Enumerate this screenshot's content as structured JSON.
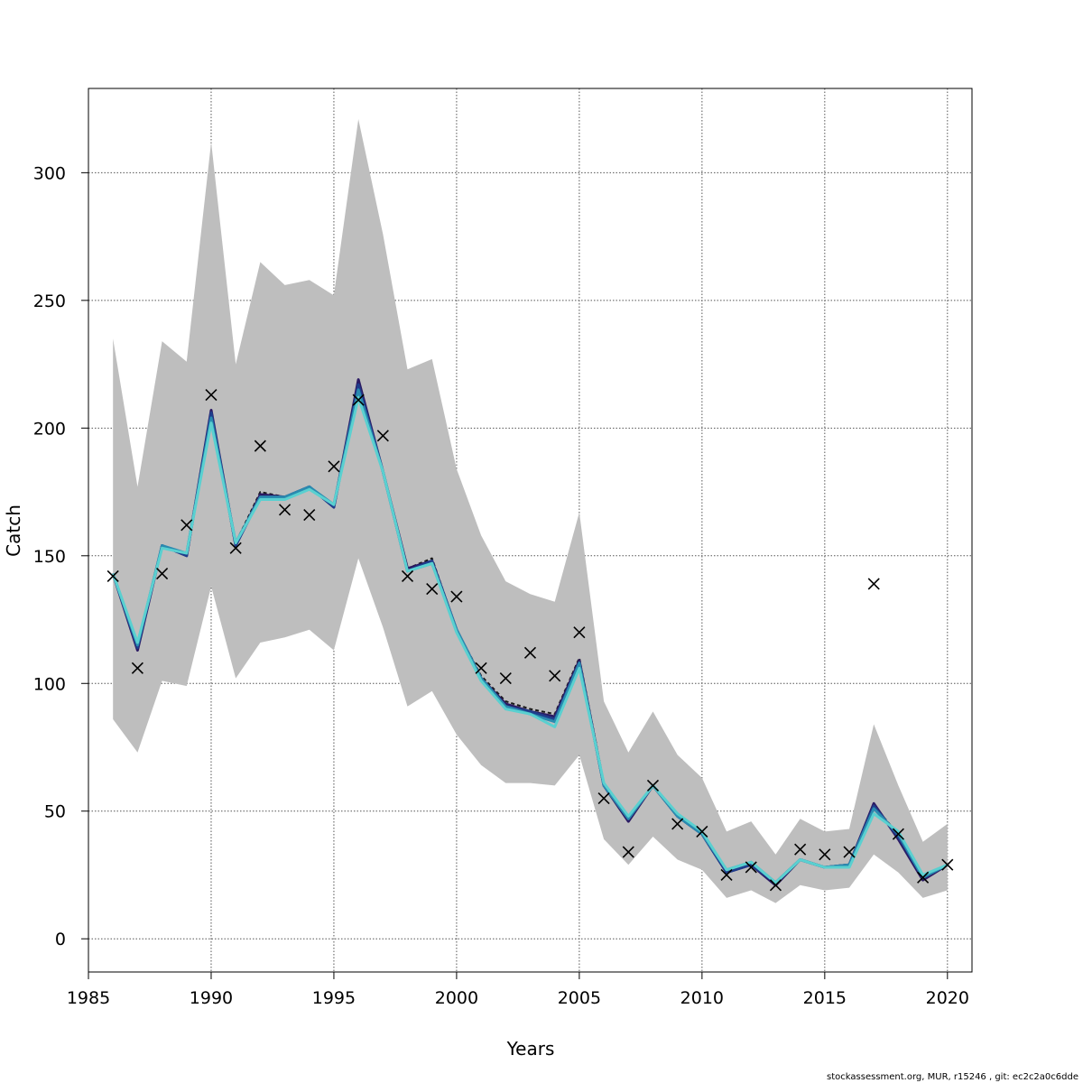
{
  "chart_data": {
    "type": "line",
    "title": "",
    "xlabel": "Years",
    "ylabel": "Catch",
    "xlim": [
      1985,
      2021
    ],
    "ylim": [
      -13,
      333
    ],
    "x_ticks": [
      1985,
      1990,
      1995,
      2000,
      2005,
      2010,
      2015,
      2020
    ],
    "y_ticks": [
      0,
      50,
      100,
      150,
      200,
      250,
      300
    ],
    "grid": true,
    "legend": "none",
    "years": [
      1986,
      1987,
      1988,
      1989,
      1990,
      1991,
      1992,
      1993,
      1994,
      1995,
      1996,
      1997,
      1998,
      1999,
      2000,
      2001,
      2002,
      2003,
      2004,
      2005,
      2006,
      2007,
      2008,
      2009,
      2010,
      2011,
      2012,
      2013,
      2014,
      2015,
      2016,
      2017,
      2018,
      2019,
      2020
    ],
    "observed": [
      142,
      106,
      143,
      162,
      213,
      153,
      193,
      168,
      166,
      185,
      211,
      197,
      142,
      137,
      134,
      106,
      102,
      112,
      103,
      120,
      55,
      34,
      60,
      45,
      42,
      25,
      28,
      21,
      35,
      33,
      34,
      139,
      41,
      24,
      29
    ],
    "band_upper": [
      235,
      177,
      234,
      226,
      312,
      225,
      265,
      256,
      258,
      252,
      321,
      276,
      223,
      227,
      184,
      158,
      140,
      135,
      132,
      167,
      93,
      73,
      89,
      72,
      63,
      42,
      46,
      33,
      47,
      42,
      43,
      84,
      60,
      38,
      45
    ],
    "band_lower": [
      86,
      73,
      101,
      99,
      138,
      102,
      116,
      118,
      121,
      113,
      149,
      122,
      91,
      97,
      80,
      68,
      61,
      61,
      60,
      72,
      39,
      29,
      40,
      31,
      27,
      16,
      19,
      14,
      21,
      19,
      20,
      33,
      26,
      16,
      19
    ],
    "series": [
      {
        "color": "#1a1a1a",
        "dashed": true,
        "values": [
          143,
          113,
          154,
          151,
          205,
          155,
          175,
          173,
          177,
          169,
          215,
          183,
          145,
          149,
          121,
          103,
          93,
          90,
          88,
          110,
          61,
          46,
          60,
          48,
          42,
          27,
          30,
          22,
          31,
          28,
          29,
          52,
          41,
          25,
          29
        ]
      },
      {
        "color": "#2b1a63",
        "values": [
          143,
          113,
          154,
          150,
          207,
          154,
          174,
          173,
          177,
          169,
          219,
          183,
          145,
          148,
          121,
          102,
          92,
          89,
          87,
          109,
          60,
          46,
          60,
          48,
          41,
          26,
          29,
          21,
          31,
          28,
          29,
          53,
          39,
          23,
          29
        ]
      },
      {
        "color": "#1f3d8c",
        "values": [
          143,
          114,
          154,
          150,
          206,
          154,
          173,
          173,
          177,
          169,
          217,
          183,
          144,
          148,
          121,
          102,
          91,
          89,
          86,
          108,
          60,
          47,
          60,
          48,
          41,
          26,
          29,
          22,
          31,
          28,
          29,
          52,
          40,
          24,
          29
        ]
      },
      {
        "color": "#2a8bb0",
        "values": [
          143,
          115,
          154,
          151,
          204,
          155,
          173,
          173,
          177,
          170,
          215,
          183,
          144,
          147,
          121,
          102,
          91,
          88,
          85,
          108,
          60,
          47,
          60,
          48,
          41,
          27,
          30,
          22,
          31,
          28,
          29,
          51,
          41,
          24,
          29
        ]
      },
      {
        "color": "#5ad0d0",
        "values": [
          143,
          116,
          153,
          151,
          202,
          155,
          172,
          172,
          176,
          170,
          212,
          183,
          144,
          147,
          120,
          101,
          90,
          88,
          83,
          106,
          61,
          48,
          60,
          49,
          42,
          27,
          30,
          22,
          31,
          28,
          28,
          49,
          42,
          25,
          29
        ]
      }
    ]
  },
  "footer": "stockassessment.org, MUR, r15246 , git: ec2c2a0c6dde"
}
